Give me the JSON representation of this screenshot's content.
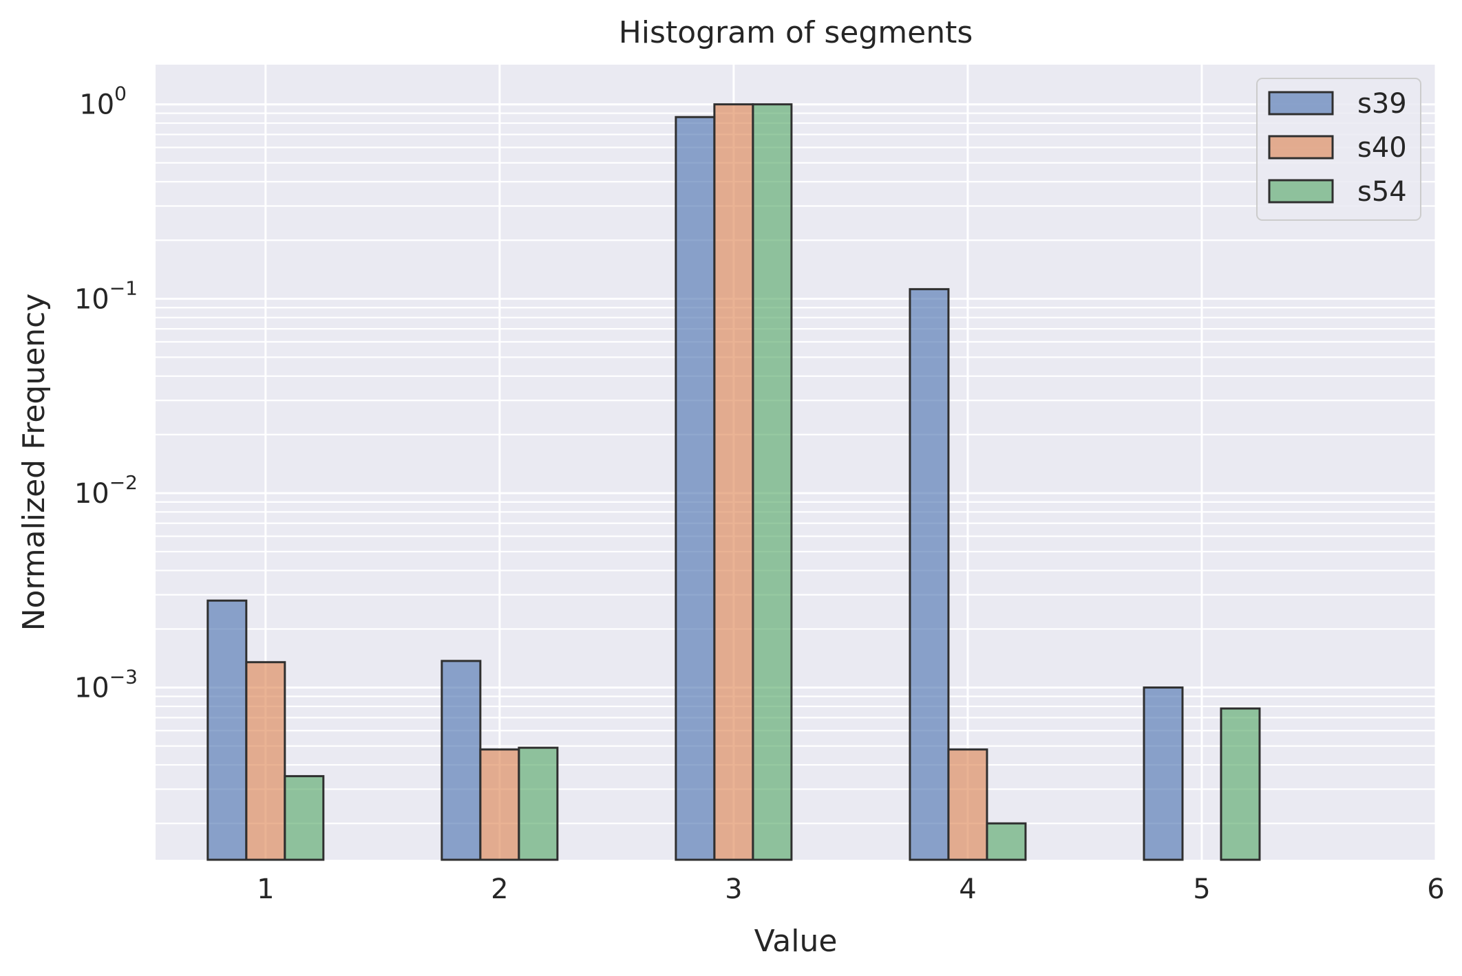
{
  "chart_data": {
    "type": "bar",
    "title": "Histogram of segments",
    "xlabel": "Value",
    "ylabel": "Normalized Frequency",
    "yscale": "log",
    "ylim": [
      0.00013,
      1.6
    ],
    "xlim": [
      0.53,
      6.0
    ],
    "x_ticks": [
      "1",
      "2",
      "3",
      "4",
      "5",
      "6"
    ],
    "y_ticks": [
      {
        "base": "10",
        "exp": "0"
      },
      {
        "base": "10",
        "exp": "−1"
      },
      {
        "base": "10",
        "exp": "−2"
      },
      {
        "base": "10",
        "exp": "−3"
      }
    ],
    "grid": true,
    "legend": "top-right",
    "categories": [
      1,
      2,
      3,
      4,
      5
    ],
    "series": [
      {
        "name": "s39",
        "color": "#4c72b0",
        "values": [
          0.0028,
          0.00137,
          0.86,
          0.112,
          0.001
        ]
      },
      {
        "name": "s40",
        "color": "#dd8452",
        "values": [
          0.00135,
          0.00048,
          1.0,
          0.00048,
          null
        ]
      },
      {
        "name": "s54",
        "color": "#55a868",
        "values": [
          0.00035,
          0.00049,
          1.0,
          0.0002,
          0.00078
        ]
      }
    ],
    "colors": {
      "plot_background": "#eaeaf2",
      "grid": "#ffffff",
      "bar_edge": "#2f2f2f"
    }
  }
}
